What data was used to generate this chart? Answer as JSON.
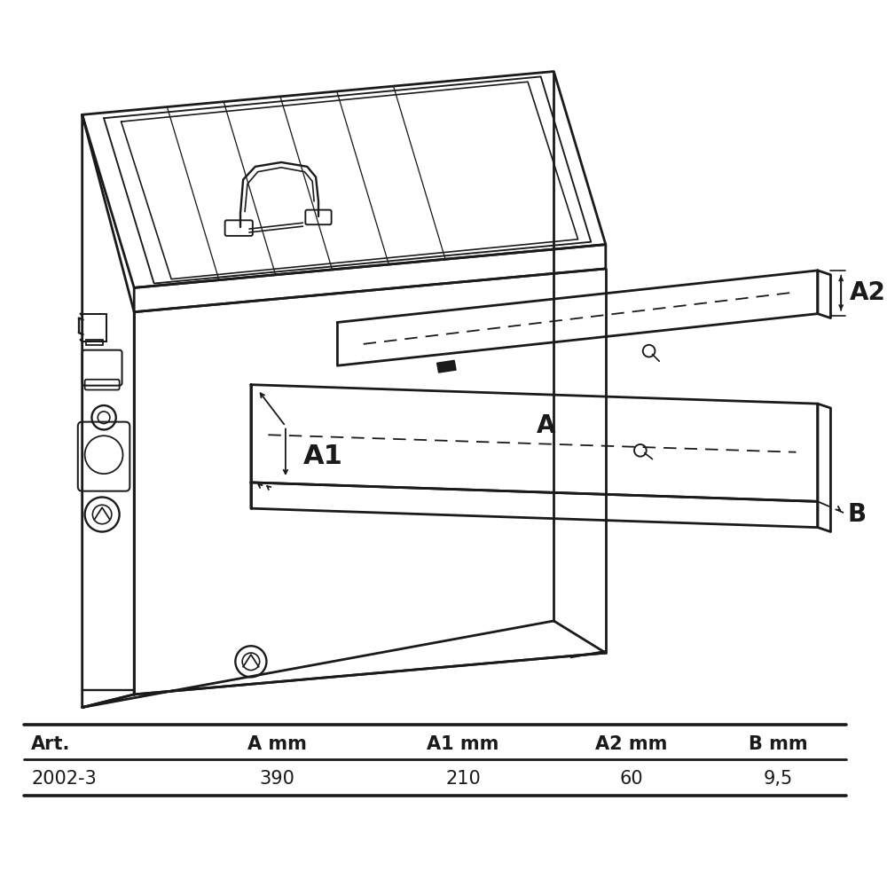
{
  "table_headers": [
    "Art.",
    "A mm",
    "A1 mm",
    "A2 mm",
    "B mm"
  ],
  "table_data": [
    [
      "2002-3",
      "390",
      "210",
      "60",
      "9,5"
    ]
  ],
  "bg_color": "#ffffff",
  "line_color": "#1a1a1a",
  "label_A": "A",
  "label_A1": "A1",
  "label_A2": "A2",
  "label_B": "B"
}
